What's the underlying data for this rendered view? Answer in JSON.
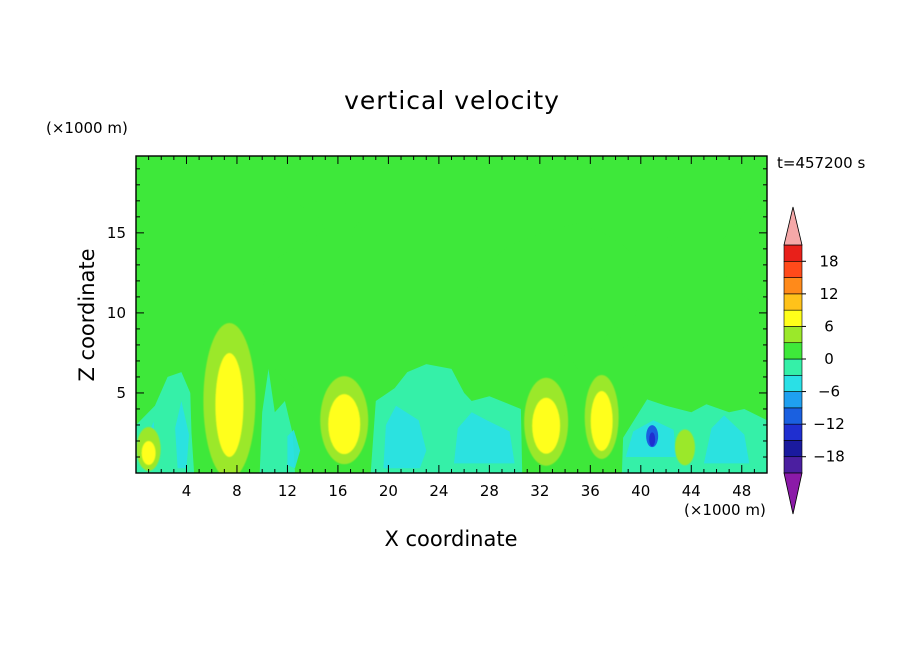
{
  "chart_data": {
    "type": "heatmap",
    "title": "vertical velocity",
    "xlabel": "X coordinate",
    "ylabel": "Z coordinate",
    "x_unit": "(×1000 m)",
    "y_unit": "(×1000 m)",
    "time_label": "t=457200 s",
    "xlim": [
      0,
      50
    ],
    "ylim": [
      0,
      19.8
    ],
    "x_ticks": [
      4,
      8,
      12,
      16,
      20,
      24,
      28,
      32,
      36,
      40,
      44,
      48
    ],
    "y_ticks": [
      5,
      10,
      15
    ],
    "colorbar": {
      "ticks": [
        18,
        12,
        6,
        0,
        -6,
        -12,
        -18
      ],
      "levels": [
        -21,
        -18,
        -15,
        -12,
        -9,
        -6,
        -3,
        0,
        3,
        6,
        9,
        12,
        15,
        18,
        21
      ],
      "colors": [
        "#8b1aa8",
        "#4b1fa0",
        "#1a1a9e",
        "#1f2fd0",
        "#1a60e0",
        "#1fa0f0",
        "#2ae0e6",
        "#35f0a8",
        "#3ee83a",
        "#9be82a",
        "#ffff1a",
        "#ffc21a",
        "#ff8a1a",
        "#ff4a1a",
        "#e8201a",
        "#f5a8a8"
      ],
      "extend": "both"
    },
    "background_value": 0,
    "features": [
      {
        "kind": "updraft_region",
        "x": [
          0,
          11
        ],
        "z": [
          0,
          17.6
        ],
        "value": 1.5
      },
      {
        "kind": "updraft_region",
        "x": [
          26,
          40
        ],
        "z": [
          0,
          15.5
        ],
        "value": 1.5
      },
      {
        "kind": "updraft_region",
        "x": [
          45.5,
          50
        ],
        "z": [
          10.5,
          17.5
        ],
        "value": 1.5
      },
      {
        "kind": "updraft_core",
        "x": 7.4,
        "z": 5.5,
        "value": 6
      },
      {
        "kind": "updraft_core",
        "x": 16.5,
        "z": 3,
        "value": 7
      },
      {
        "kind": "updraft_core",
        "x": 32.5,
        "z": 3,
        "value": 6
      },
      {
        "kind": "updraft_core",
        "x": 36.9,
        "z": 3,
        "value": 7
      },
      {
        "kind": "updraft_core",
        "x": 1,
        "z": 1.5,
        "value": 6
      },
      {
        "kind": "updraft_core",
        "x": 43.5,
        "z": 1.8,
        "value": 5
      },
      {
        "kind": "downdraft",
        "x": [
          19,
          30
        ],
        "z": [
          0,
          6.5
        ],
        "value": -3
      },
      {
        "kind": "downdraft_core",
        "x": 41,
        "z": 2.2,
        "value": -12
      }
    ]
  }
}
